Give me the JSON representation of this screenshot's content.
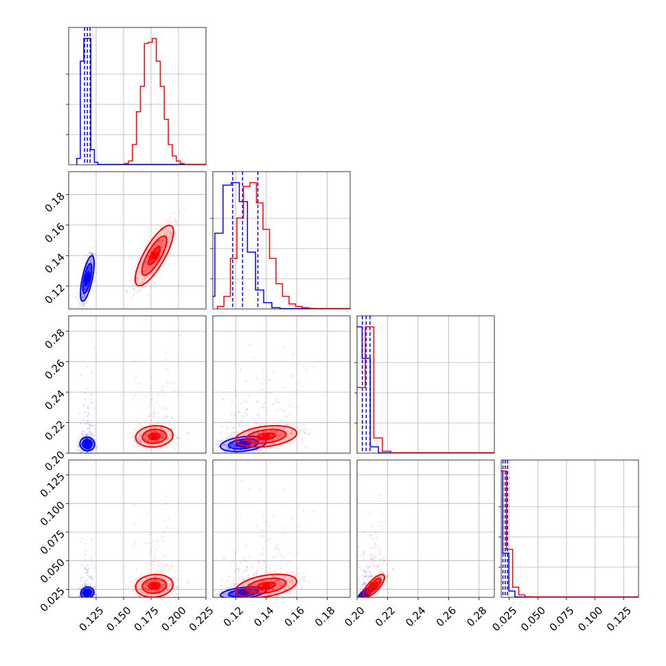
{
  "chart_data": {
    "type": "corner",
    "title": "",
    "series_colors": {
      "blue": "#0000ff",
      "red": "#ff0000"
    },
    "grid": true,
    "parameters": [
      {
        "range": [
          0.1,
          0.225
        ]
      },
      {
        "range": [
          0.105,
          0.195
        ]
      },
      {
        "range": [
          0.2,
          0.29
        ]
      },
      {
        "range": [
          0.018,
          0.138
        ]
      }
    ],
    "x_ticks": [
      {
        "values": [
          0.125,
          0.15,
          0.175,
          0.2,
          0.225
        ],
        "labels": [
          "0.125",
          "0.150",
          "0.175",
          "0.200",
          "0.225"
        ]
      },
      {
        "values": [
          0.12,
          0.14,
          0.16,
          0.18
        ],
        "labels": [
          "0.12",
          "0.14",
          "0.16",
          "0.18"
        ]
      },
      {
        "values": [
          0.2,
          0.22,
          0.24,
          0.26,
          0.28
        ],
        "labels": [
          "0.20",
          "0.22",
          "0.24",
          "0.26",
          "0.28"
        ]
      },
      {
        "values": [
          0.025,
          0.05,
          0.075,
          0.1,
          0.125
        ],
        "labels": [
          "0.025",
          "0.050",
          "0.075",
          "0.100",
          "0.125"
        ]
      }
    ],
    "y_ticks": [
      null,
      {
        "values": [
          0.12,
          0.14,
          0.16,
          0.18
        ],
        "labels": [
          "0.12",
          "0.14",
          "0.16",
          "0.18"
        ]
      },
      {
        "values": [
          0.2,
          0.22,
          0.24,
          0.26,
          0.28
        ],
        "labels": [
          "0.20",
          "0.22",
          "0.24",
          "0.26",
          "0.28"
        ]
      },
      {
        "values": [
          0.025,
          0.05,
          0.075,
          0.1,
          0.125
        ],
        "labels": [
          "0.025",
          "0.050",
          "0.075",
          "0.100",
          "0.125"
        ]
      }
    ],
    "series": [
      {
        "color": "#0000ff",
        "means": [
          0.117,
          0.125,
          0.206,
          0.022
        ],
        "sigmas": [
          0.003,
          0.0075,
          0.0025,
          0.0025
        ],
        "correlations": [
          [
            0,
            1,
            0.7
          ],
          [
            0,
            2,
            0.1
          ],
          [
            1,
            2,
            0.3
          ],
          [
            0,
            3,
            0.1
          ],
          [
            1,
            3,
            0.4
          ],
          [
            2,
            3,
            0.8
          ]
        ],
        "quantiles": [
          [
            0.1145,
            0.117,
            0.1195
          ],
          [
            0.118,
            0.1245,
            0.1345
          ],
          [
            0.2035,
            0.206,
            0.2085
          ],
          [
            0.0195,
            0.0215,
            0.0235
          ]
        ],
        "hist_counts": [
          [
            0.05,
            0.82,
            1.0,
            1.0,
            0.12,
            0.02
          ],
          [
            0.1,
            0.6,
            0.98,
            1.0,
            0.85,
            0.45,
            0.15,
            0.05,
            0.01
          ],
          [
            1.0,
            0.75,
            0.05
          ],
          [
            1.0,
            0.35,
            0.05
          ]
        ]
      },
      {
        "color": "#ff0000",
        "means": [
          0.178,
          0.14,
          0.211,
          0.028
        ],
        "sigmas": [
          0.0085,
          0.01,
          0.0035,
          0.005
        ],
        "correlations": [
          [
            0,
            1,
            0.85
          ],
          [
            0,
            2,
            0.1
          ],
          [
            1,
            2,
            0.3
          ],
          [
            0,
            3,
            0.1
          ],
          [
            1,
            3,
            0.4
          ],
          [
            2,
            3,
            0.8
          ]
        ],
        "quantiles": [],
        "hist_counts": [
          [
            0.01,
            0.03,
            0.16,
            0.42,
            0.62,
            0.96,
            0.97,
            1.0,
            0.82,
            0.62,
            0.36,
            0.16,
            0.07,
            0.03,
            0.01
          ],
          [
            0.02,
            0.1,
            0.4,
            0.72,
            0.97,
            1.0,
            0.84,
            0.63,
            0.4,
            0.2,
            0.1,
            0.04,
            0.02,
            0.01,
            0.005
          ],
          [
            0.52,
            1.0,
            0.12,
            0.015
          ],
          [
            0.05,
            1.0,
            0.38,
            0.08,
            0.02,
            0.005
          ]
        ]
      }
    ]
  }
}
